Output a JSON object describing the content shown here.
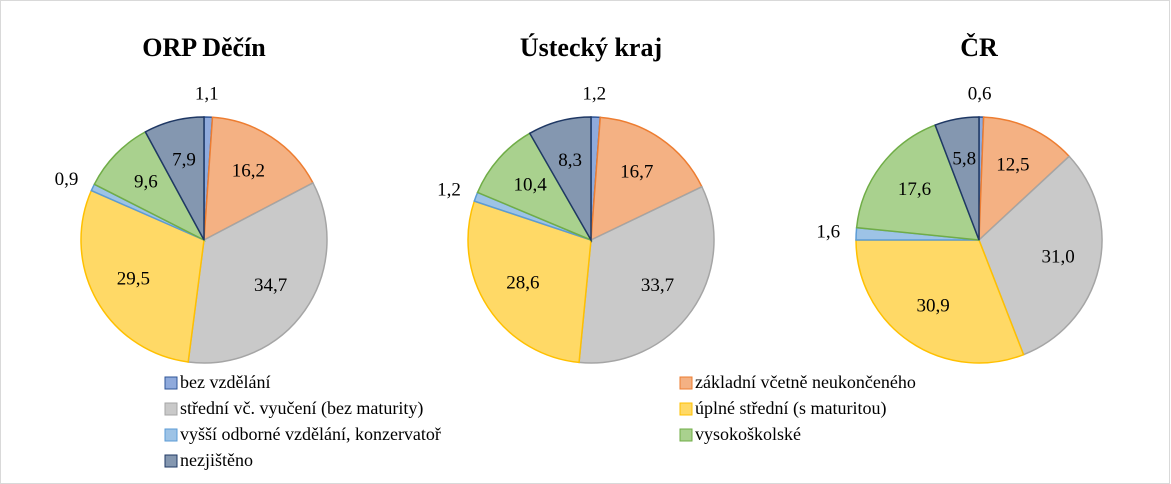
{
  "legend": {
    "categories": [
      "bez vzdělání",
      "základní včetně neukončeného",
      "střední vč. vyučení (bez maturity)",
      "úplné střední (s maturitou)",
      "vyšší odborné vzdělání, konzervatoř",
      "vysokoškolské",
      "nezjištěno"
    ],
    "colors": [
      "#8faadc",
      "#f4b183",
      "#c9c9c9",
      "#ffd966",
      "#9dc3e6",
      "#a9d18e",
      "#8497b0"
    ],
    "borders": [
      "#2f5597",
      "#ed7d31",
      "#a5a5a5",
      "#ffc000",
      "#5b9bd5",
      "#70ad47",
      "#1f3864"
    ]
  },
  "chart_data": [
    {
      "type": "pie",
      "title": "ORP Děčín",
      "values": [
        1.1,
        16.2,
        34.7,
        29.5,
        0.9,
        9.6,
        7.9
      ],
      "value_labels": [
        "1,1",
        "16,2",
        "34,7",
        "29,5",
        "0,9",
        "9,6",
        "7,9"
      ]
    },
    {
      "type": "pie",
      "title": "Ústecký kraj",
      "values": [
        1.2,
        16.7,
        33.7,
        28.6,
        1.2,
        10.4,
        8.3
      ],
      "value_labels": [
        "1,2",
        "16,7",
        "33,7",
        "28,6",
        "1,2",
        "10,4",
        "8,3"
      ]
    },
    {
      "type": "pie",
      "title": "ČR",
      "values": [
        0.6,
        12.5,
        31.0,
        30.9,
        1.6,
        17.6,
        5.8
      ],
      "value_labels": [
        "0,6",
        "12,5",
        "31,0",
        "30,9",
        "1,6",
        "17,6",
        "5,8"
      ]
    }
  ]
}
